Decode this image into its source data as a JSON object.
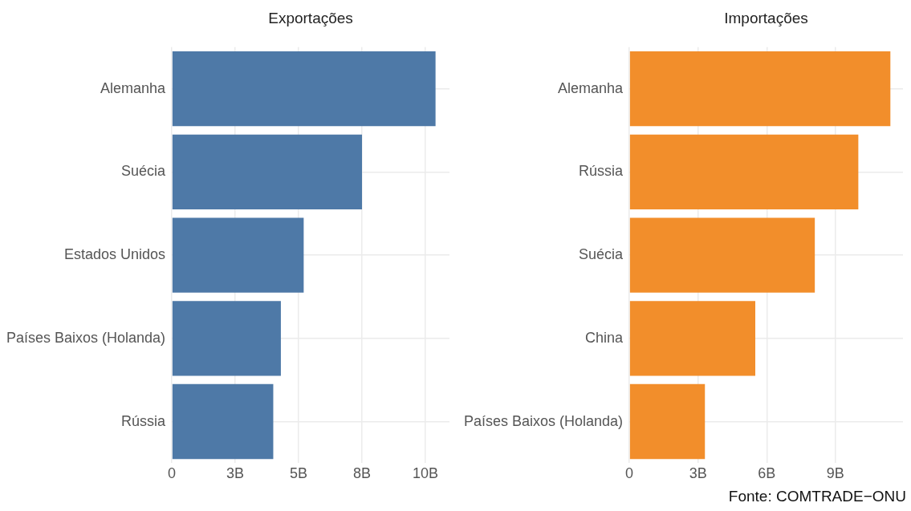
{
  "chart_data": [
    {
      "type": "bar",
      "orientation": "horizontal",
      "title": "Exportações",
      "categories": [
        "Alemanha",
        "Suécia",
        "Estados Unidos",
        "Países Baixos (Holanda)",
        "Rússia"
      ],
      "values": [
        10.4,
        7.5,
        5.2,
        4.3,
        4.0
      ],
      "color": "#4e79a7",
      "xlim": [
        0,
        10.95
      ],
      "xticks": [
        0,
        {
          "value": 2.5,
          "label": "3B"
        },
        {
          "value": 5,
          "label": "5B"
        },
        {
          "value": 7.5,
          "label": "8B"
        },
        {
          "value": 10,
          "label": "10B"
        }
      ],
      "grid": true,
      "legend": false
    },
    {
      "type": "bar",
      "orientation": "horizontal",
      "title": "Importações",
      "categories": [
        "Alemanha",
        "Rússia",
        "Suécia",
        "China",
        "Países Baixos (Holanda)"
      ],
      "values": [
        11.4,
        10.0,
        8.1,
        5.5,
        3.3
      ],
      "color": "#f28e2b",
      "xlim": [
        0,
        11.95
      ],
      "xticks": [
        0,
        {
          "value": 3,
          "label": "3B"
        },
        {
          "value": 6,
          "label": "6B"
        },
        {
          "value": 9,
          "label": "9B"
        }
      ],
      "grid": true,
      "legend": false,
      "annotations": [
        "Fonte: COMTRADE−ONU"
      ]
    }
  ]
}
